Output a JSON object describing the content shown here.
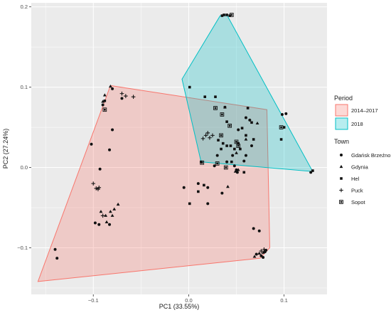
{
  "chart_data": {
    "type": "scatter",
    "xlabel": "PC1 (33.55%)",
    "ylabel": "PC2 (27.24%)",
    "xlim": [
      -0.165,
      0.145
    ],
    "ylim": [
      -0.158,
      0.205
    ],
    "x_ticks": [
      -0.1,
      0.0,
      0.1
    ],
    "x_tick_labels": [
      "−0.1",
      "0.0",
      "0.1"
    ],
    "y_ticks": [
      -0.1,
      0.0,
      0.1,
      0.2
    ],
    "y_tick_labels": [
      "−0.1",
      "0.0",
      "0.1",
      "0.2"
    ],
    "grid": true,
    "legend_position": "right",
    "hull_legend": {
      "title": "Period",
      "entries": [
        {
          "label": "2014–2017",
          "fill": "#f8766d",
          "stroke": "#f8766d"
        },
        {
          "label": "2018",
          "fill": "#00bfc4",
          "stroke": "#00bfc4"
        }
      ]
    },
    "shape_legend": {
      "title": "Town",
      "entries": [
        {
          "label": "Gdańsk Brzeźno",
          "shape": "circle"
        },
        {
          "label": "Gdynia",
          "shape": "triangle"
        },
        {
          "label": "Hel",
          "shape": "square"
        },
        {
          "label": "Puck",
          "shape": "plus"
        },
        {
          "label": "Sopot",
          "shape": "boxed-square"
        }
      ]
    },
    "hulls": [
      {
        "period": "2014–2017",
        "vertices": [
          [
            -0.158,
            -0.142
          ],
          [
            -0.082,
            0.102
          ],
          [
            0.082,
            0.072
          ],
          [
            0.085,
            -0.1
          ],
          [
            0.075,
            -0.113
          ]
        ]
      },
      {
        "period": "2018",
        "vertices": [
          [
            0.033,
            0.189
          ],
          [
            0.04,
            0.19
          ],
          [
            0.13,
            -0.005
          ],
          [
            0.013,
            0.007
          ],
          [
            -0.007,
            0.11
          ]
        ]
      }
    ],
    "series": [
      {
        "name": "Gdańsk Brzeźno",
        "shape": "circle",
        "points": [
          [
            -0.14,
            -0.102
          ],
          [
            -0.138,
            -0.113
          ],
          [
            -0.102,
            0.029
          ],
          [
            -0.093,
            -0.002
          ],
          [
            -0.094,
            -0.071
          ],
          [
            -0.08,
            0.098
          ],
          [
            -0.07,
            0.086
          ],
          [
            -0.083,
            0.022
          ],
          [
            -0.09,
            0.078
          ],
          [
            -0.08,
            0.047
          ],
          [
            -0.098,
            -0.069
          ],
          [
            -0.083,
            -0.071
          ],
          [
            0.03,
            0.015
          ],
          [
            0.04,
            0.007
          ],
          [
            0.05,
            -0.003
          ],
          [
            0.058,
            0.008
          ],
          [
            0.027,
            0.002
          ],
          [
            0.06,
            0.062
          ],
          [
            0.064,
            0.059
          ],
          [
            0.068,
            -0.076
          ],
          [
            0.074,
            -0.079
          ],
          [
            0.071,
            -0.108
          ],
          [
            0.076,
            -0.11
          ],
          [
            0.08,
            -0.105
          ],
          [
            0.078,
            -0.112
          ],
          [
            0.048,
            0.002
          ],
          [
            0.051,
            -0.006
          ],
          [
            0.046,
            0.015
          ],
          [
            0.01,
            -0.02
          ],
          [
            0.02,
            -0.025
          ],
          [
            0.035,
            -0.032
          ],
          [
            0.06,
            0.015
          ],
          [
            0.066,
            0.027
          ],
          [
            0.052,
            0.047
          ],
          [
            0.098,
            0.066
          ],
          [
            0.102,
            0.067
          ],
          [
            0.128,
            -0.006
          ],
          [
            0.02,
            -0.045
          ],
          [
            -0.005,
            -0.025
          ],
          [
            0.081,
            -0.103
          ]
        ]
      },
      {
        "name": "Gdynia",
        "shape": "triangle",
        "points": [
          [
            -0.082,
            0.101
          ],
          [
            -0.088,
            0.09
          ],
          [
            -0.09,
            0.082
          ],
          [
            -0.092,
            -0.055
          ],
          [
            -0.087,
            -0.06
          ],
          [
            -0.082,
            -0.055
          ],
          [
            -0.078,
            -0.052
          ],
          [
            -0.074,
            -0.046
          ],
          [
            -0.08,
            -0.06
          ],
          [
            -0.086,
            -0.068
          ],
          [
            0.038,
            0.075
          ],
          [
            0.06,
            0.035
          ],
          [
            0.05,
            0.018
          ],
          [
            0.052,
            -0.003
          ],
          [
            0.049,
            -0.005
          ],
          [
            0.072,
            0.055
          ],
          [
            0.078,
            -0.106
          ],
          [
            0.074,
            -0.107
          ],
          [
            0.069,
            -0.111
          ],
          [
            0.041,
            -0.024
          ]
        ]
      },
      {
        "name": "Hel",
        "shape": "square",
        "points": [
          [
            -0.088,
            0.083
          ],
          [
            0.035,
            0.189
          ],
          [
            0.037,
            0.19
          ],
          [
            0.04,
            0.19
          ],
          [
            0.043,
            0.189
          ],
          [
            0.028,
            0.088
          ],
          [
            0.062,
            0.074
          ],
          [
            0.066,
            0.056
          ],
          [
            0.056,
            0.049
          ],
          [
            0.052,
            0.03
          ],
          [
            0.044,
            0.027
          ],
          [
            0.036,
            0.03
          ],
          [
            0.038,
            0.075
          ],
          [
            0.04,
            0.027
          ],
          [
            0.031,
            0.034
          ],
          [
            0.013,
            0.007
          ],
          [
            0.045,
            0.007
          ],
          [
            0.048,
            0.023
          ],
          [
            0.054,
            0.023
          ],
          [
            0.034,
            0.023
          ],
          [
            0.04,
            0.057
          ],
          [
            0.068,
            0.035
          ],
          [
            0.001,
            0.1
          ],
          [
            0.017,
            0.088
          ],
          [
            0.06,
            0.04
          ],
          [
            0.1,
            0.05
          ],
          [
            0.13,
            -0.004
          ],
          [
            0.097,
            0.035
          ],
          [
            0.058,
            -0.006
          ],
          [
            0.016,
            -0.022
          ],
          [
            0.001,
            -0.045
          ],
          [
            0.01,
            -0.03
          ]
        ]
      },
      {
        "name": "Puck",
        "shape": "plus",
        "points": [
          [
            -0.07,
            0.092
          ],
          [
            -0.066,
            0.089
          ],
          [
            -0.058,
            0.088
          ],
          [
            -0.1,
            -0.02
          ],
          [
            -0.097,
            -0.026
          ],
          [
            -0.095,
            -0.027
          ],
          [
            -0.094,
            -0.025
          ],
          [
            -0.09,
            -0.06
          ],
          [
            0.022,
            0.037
          ],
          [
            0.018,
            0.04
          ],
          [
            0.02,
            0.043
          ],
          [
            0.025,
            0.04
          ],
          [
            0.015,
            0.036
          ],
          [
            0.076,
            -0.104
          ],
          [
            0.079,
            -0.102
          ]
        ]
      },
      {
        "name": "Sopot",
        "shape": "boxed-square",
        "points": [
          [
            -0.088,
            0.072
          ],
          [
            0.028,
            0.074
          ],
          [
            0.035,
            0.066
          ],
          [
            0.034,
            0.04
          ],
          [
            0.05,
            0.032
          ],
          [
            0.043,
            0.052
          ],
          [
            0.052,
            0.027
          ],
          [
            0.014,
            0.006
          ],
          [
            0.039,
            0.0
          ],
          [
            0.097,
            0.05
          ],
          [
            0.045,
            0.19
          ],
          [
            0.03,
            0.005
          ]
        ]
      }
    ]
  }
}
